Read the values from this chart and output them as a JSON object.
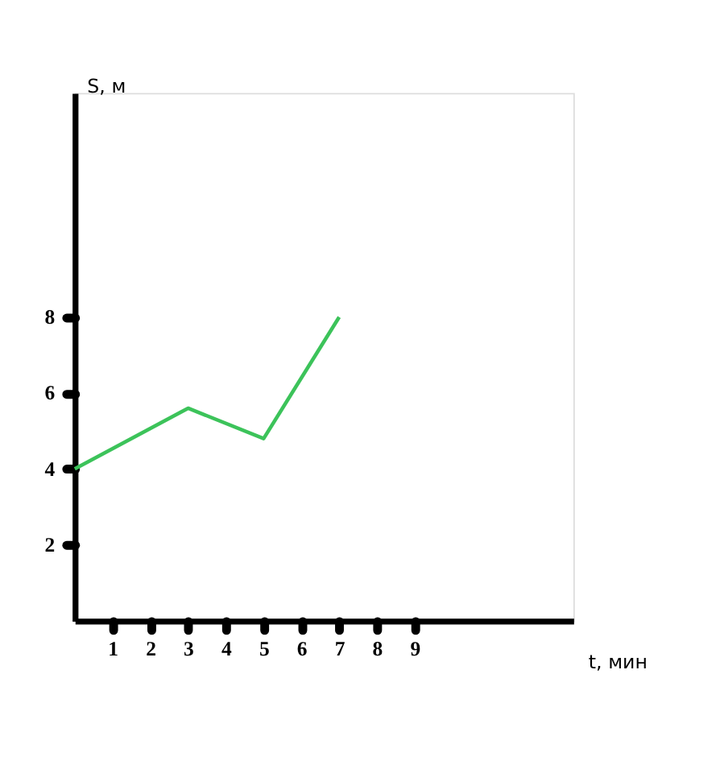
{
  "chart_data": {
    "type": "line",
    "xlabel": "t, мин",
    "ylabel": "S, м",
    "x": [
      0,
      3,
      5,
      7
    ],
    "series": [
      {
        "color": "#3cc35a",
        "values": [
          4,
          5.6,
          4.8,
          8
        ]
      }
    ],
    "xlim": [
      0,
      13.2
    ],
    "xticks": [
      1,
      2,
      3,
      4,
      5,
      6,
      7,
      8,
      9
    ],
    "ylim": [
      0,
      13.9
    ],
    "yticks": [
      2,
      4,
      6,
      8
    ],
    "grid": false,
    "legend": false,
    "marker": "none",
    "line_style": "solid"
  }
}
